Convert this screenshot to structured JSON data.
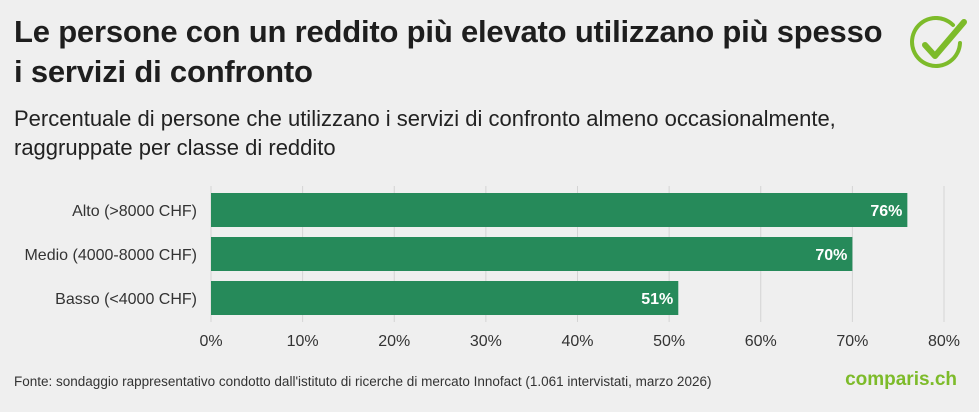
{
  "header": {
    "title": "Le persone con un reddito più elevato utilizzano più spesso i servizi di confronto",
    "subtitle": "Percentuale di persone che utilizzano i servizi di confronto almeno occasionalmente, raggruppate per classe di reddito"
  },
  "footer": {
    "source": "Fonte: sondaggio rappresentativo condotto dall'istituto di ricerche di mercato Innofact (1.061 intervistati, marzo 2026)",
    "brand": "comparis.ch"
  },
  "colors": {
    "bar": "#268a5a",
    "brand": "#7dbb2a"
  },
  "icons": {
    "logo": "checkmark-circle-icon"
  },
  "chart_data": {
    "type": "bar",
    "orientation": "horizontal",
    "categories": [
      "Alto (>8000 CHF)",
      "Medio (4000-8000 CHF)",
      "Basso (<4000 CHF)"
    ],
    "values": [
      76,
      70,
      51
    ],
    "data_labels": [
      "76%",
      "70%",
      "51%"
    ],
    "xlim": [
      0,
      80
    ],
    "xticks": [
      "0%",
      "10%",
      "20%",
      "30%",
      "40%",
      "50%",
      "60%",
      "70%",
      "80%"
    ],
    "grid": true
  }
}
